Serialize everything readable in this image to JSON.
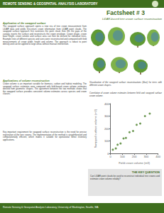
{
  "header": {
    "lab": "REMOTE SENSING & GEOSPATIAL ANALYSIS LABORATORY",
    "title": "Factsheet # 3",
    "subtitle": "LiDAR-based tree crown surface reconstruction"
  },
  "sections": [
    {
      "heading": "Application of the swapped surface",
      "text": "The swapped surface approach opens a new era of tree crown measurement from LiDAR data and yields first-return crown information from LiDAR point clouds. The swapped surface approach first rasterizes the point cloud, then fills the gaps of the canopy, inverts the surface and reconstructs the crown envelope. Crown shape, crown base height, crown volume and surface area can then be derived for individual trees. Example trees of different species and sizes were reconstructed and compared with field measurements of crown width, height and volume. The approach is robust to point density and can be applied to large areas without manual intervention."
    },
    {
      "heading": "Applications of volume reconstruction",
      "text": "Crown volume is an important variable for biomass, carbon and habitat modeling. The swapped surface estimates were compared with field-based crown volume estimates derived from geometric shapes. The agreement between the two methods shows that the swapped surface provides consistent volume estimates across species and crown classes."
    },
    {
      "heading": "",
      "text": "Key important requirement for swapped surface reconstruction is the need for precise registration of the tree crowns. The implementation of the method is straightforward and computationally efficient, which makes it suitable for operational forest inventory applications."
    }
  ],
  "figure_caption": "Visualization of the swapped surface reconstructions (blue) for trees with different crown shapes.",
  "chart_caption": "Correlation of crown volume estimates between field and swapped surface crown volume.",
  "chart_data": {
    "type": "scatter",
    "x_label": "Field crown volume (m3)",
    "y_label": "Swapped surface volume (m3)",
    "x": [
      20,
      45,
      60,
      85,
      110,
      130,
      160,
      190,
      220,
      250,
      290,
      330
    ],
    "values": [
      30,
      40,
      70,
      80,
      120,
      125,
      170,
      180,
      230,
      240,
      300,
      320
    ],
    "color": "#4a7f2a",
    "xlim": [
      0,
      400
    ],
    "ylim": [
      0,
      400
    ],
    "xticks": [
      0,
      100,
      200,
      300,
      400
    ],
    "yticks": [
      0,
      100,
      200,
      300,
      400
    ],
    "grid": false
  },
  "bottom_line": {
    "heading": "THE KEY QUESTION",
    "text": "Can LiDAR point clouds be used to reconstruct individual tree crowns and estimate crown volume reliably?"
  },
  "footer": "Remote Sensing & Geospatial Analysis Laboratory, University of Washington, Seattle, WA"
}
